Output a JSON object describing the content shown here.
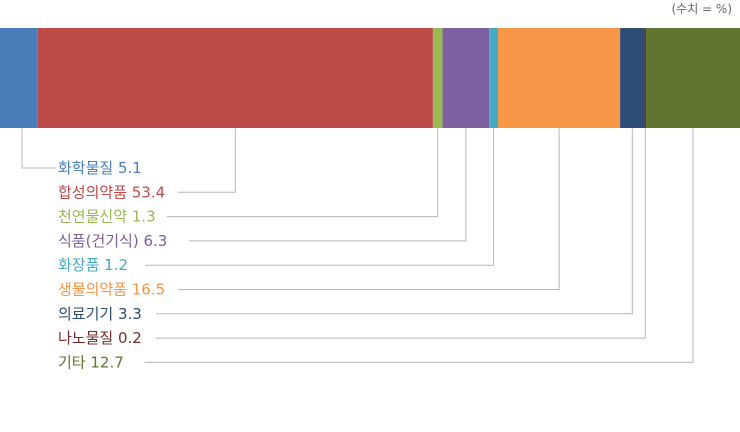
{
  "unit_note": "(수치 = %)",
  "chart_data": {
    "type": "bar",
    "orientation": "horizontal-stacked",
    "total": 100,
    "series": [
      {
        "name": "화학물질",
        "value": 5.1,
        "label": "화학물질 5.1",
        "color": "#4a7ebb"
      },
      {
        "name": "합성의약품",
        "value": 53.4,
        "label": "합성의약품 53.4",
        "color": "#be4b48"
      },
      {
        "name": "천연물신약",
        "value": 1.3,
        "label": "천연물신약 1.3",
        "color": "#98b954"
      },
      {
        "name": "식품(건기식)",
        "value": 6.3,
        "label": "식품(건기식) 6.3",
        "color": "#7d60a0"
      },
      {
        "name": "화장품",
        "value": 1.2,
        "label": "화장품 1.2",
        "color": "#46aac5"
      },
      {
        "name": "생물의약품",
        "value": 16.5,
        "label": "생물의약품 16.5",
        "color": "#f79646"
      },
      {
        "name": "의료기기",
        "value": 3.3,
        "label": "의료기기 3.3",
        "color": "#2c4d75"
      },
      {
        "name": "나노물질",
        "value": 0.2,
        "label": "나노물질 0.2",
        "color": "#772c2a"
      },
      {
        "name": "기타",
        "value": 12.7,
        "label": "기타 12.7",
        "color": "#5f7530"
      }
    ]
  }
}
